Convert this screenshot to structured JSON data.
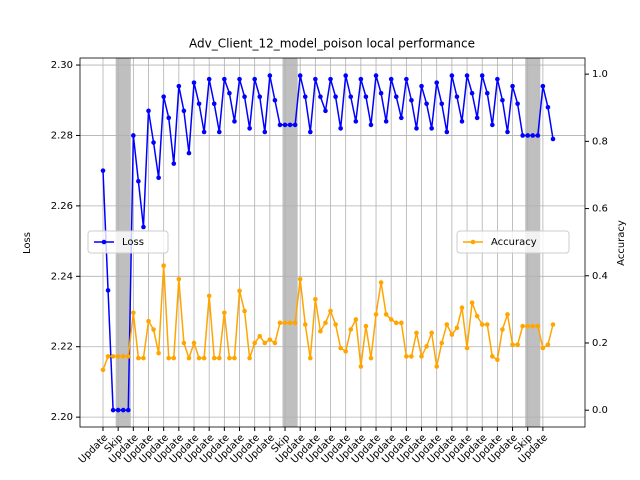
{
  "chart_data": {
    "type": "line",
    "title": "Adv_Client_12_model_poison local performance",
    "ylabel": "Loss",
    "y2label": "Accuracy",
    "categories": [
      "Update",
      null,
      null,
      "Skip",
      null,
      null,
      "Update",
      null,
      null,
      "Update",
      null,
      null,
      "Update",
      null,
      null,
      "Update",
      null,
      null,
      "Update",
      null,
      null,
      "Update",
      null,
      null,
      "Update",
      null,
      null,
      "Update",
      null,
      null,
      "Update",
      null,
      null,
      "Update",
      null,
      null,
      "Skip",
      null,
      null,
      "Update",
      null,
      null,
      "Update",
      null,
      null,
      "Update",
      null,
      null,
      "Update",
      null,
      null,
      "Update",
      null,
      null,
      "Update",
      null,
      null,
      "Update",
      null,
      null,
      "Update",
      null,
      null,
      "Update",
      null,
      null,
      "Update",
      null,
      null,
      "Update",
      null,
      null,
      "Update",
      null,
      null,
      "Update",
      null,
      null,
      "Update",
      null,
      null,
      "Update",
      null,
      null,
      "Skip",
      null,
      null,
      "Update",
      null,
      null
    ],
    "highlight": "Skip",
    "series": [
      {
        "name": "Loss",
        "color": "#0000ff",
        "axis": "y",
        "legend": "left",
        "values": [
          2.27,
          2.236,
          2.202,
          2.202,
          2.202,
          2.202,
          2.28,
          2.267,
          2.254,
          2.287,
          2.278,
          2.268,
          2.291,
          2.285,
          2.272,
          2.294,
          2.287,
          2.275,
          2.295,
          2.289,
          2.281,
          2.296,
          2.289,
          2.281,
          2.296,
          2.292,
          2.284,
          2.296,
          2.291,
          2.282,
          2.296,
          2.291,
          2.281,
          2.297,
          2.29,
          2.283,
          2.283,
          2.283,
          2.283,
          2.297,
          2.291,
          2.281,
          2.296,
          2.291,
          2.287,
          2.296,
          2.291,
          2.282,
          2.297,
          2.291,
          2.284,
          2.296,
          2.291,
          2.283,
          2.297,
          2.292,
          2.284,
          2.296,
          2.291,
          2.285,
          2.296,
          2.29,
          2.282,
          2.294,
          2.289,
          2.282,
          2.295,
          2.289,
          2.281,
          2.297,
          2.291,
          2.284,
          2.297,
          2.292,
          2.285,
          2.297,
          2.292,
          2.283,
          2.296,
          2.29,
          2.281,
          2.294,
          2.289,
          2.28,
          2.28,
          2.28,
          2.28,
          2.294,
          2.288,
          2.279
        ]
      },
      {
        "name": "Accuracy",
        "color": "#ffa500",
        "axis": "y2",
        "legend": "right",
        "values": [
          0.12,
          0.16,
          0.16,
          0.16,
          0.16,
          0.16,
          0.29,
          0.155,
          0.155,
          0.265,
          0.24,
          0.17,
          0.43,
          0.155,
          0.155,
          0.39,
          0.2,
          0.155,
          0.2,
          0.155,
          0.155,
          0.34,
          0.155,
          0.155,
          0.29,
          0.155,
          0.155,
          0.355,
          0.295,
          0.155,
          0.2,
          0.22,
          0.2,
          0.21,
          0.2,
          0.26,
          0.26,
          0.26,
          0.26,
          0.39,
          0.255,
          0.155,
          0.33,
          0.235,
          0.26,
          0.295,
          0.255,
          0.185,
          0.175,
          0.24,
          0.27,
          0.13,
          0.25,
          0.155,
          0.285,
          0.38,
          0.285,
          0.27,
          0.26,
          0.26,
          0.16,
          0.16,
          0.23,
          0.16,
          0.19,
          0.23,
          0.13,
          0.2,
          0.255,
          0.225,
          0.245,
          0.305,
          0.185,
          0.32,
          0.28,
          0.255,
          0.255,
          0.16,
          0.15,
          0.24,
          0.285,
          0.195,
          0.195,
          0.25,
          0.25,
          0.25,
          0.25,
          0.185,
          0.195,
          0.255
        ]
      }
    ],
    "ylim": [
      2.1972,
      2.302
    ],
    "yticks": [
      {
        "value": 2.2,
        "label": "2.20"
      },
      2.22,
      2.24,
      2.26,
      2.28,
      {
        "value": 2.3,
        "label": "2.30"
      }
    ],
    "y2lim": [
      -0.05,
      1.048
    ],
    "y2ticks": [
      {
        "value": 0,
        "label": "0.0"
      },
      0.2,
      0.4,
      0.6,
      0.8,
      {
        "value": 1,
        "label": "1.0"
      }
    ],
    "grid": true
  }
}
